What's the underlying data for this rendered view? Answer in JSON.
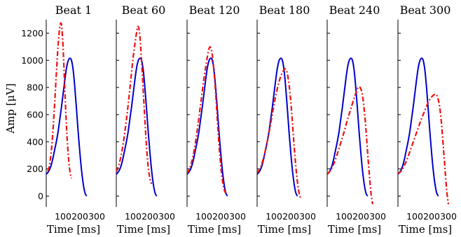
{
  "chart_data": {
    "type": "line",
    "ylabel": "Amp [μV]",
    "yticks": [
      0,
      200,
      400,
      600,
      800,
      1000,
      1200
    ],
    "xticks": [
      100,
      200,
      300
    ],
    "ylim": [
      -80,
      1300
    ],
    "xlim": [
      0,
      350
    ],
    "colors": {
      "solid": "#0000cc",
      "dashed": "#ee1111",
      "axis": "#000000"
    },
    "reference_curve": {
      "x": [
        0,
        10,
        20,
        30,
        40,
        50,
        60,
        70,
        80,
        90,
        100,
        110,
        120,
        130,
        140,
        150,
        160,
        170,
        180,
        190,
        200,
        210,
        220,
        230,
        240
      ],
      "y": [
        160,
        175,
        195,
        230,
        280,
        340,
        400,
        470,
        560,
        650,
        750,
        850,
        940,
        995,
        1015,
        1000,
        930,
        800,
        640,
        470,
        320,
        190,
        90,
        25,
        0
      ]
    },
    "panels": [
      {
        "title": "Beat 1",
        "xlabel": "Time [ms]",
        "dashed": {
          "x": [
            10,
            20,
            30,
            40,
            50,
            60,
            70,
            80,
            90,
            100,
            110,
            120,
            130,
            140,
            150
          ],
          "y": [
            185,
            230,
            330,
            480,
            680,
            900,
            1100,
            1240,
            1265,
            1100,
            800,
            520,
            320,
            190,
            130
          ]
        }
      },
      {
        "title": "Beat 60",
        "xlabel": "Time [ms]",
        "dashed": {
          "x": [
            0,
            20,
            40,
            60,
            80,
            100,
            120,
            130,
            140,
            150,
            160,
            170,
            180,
            190,
            200,
            210
          ],
          "y": [
            180,
            250,
            380,
            560,
            780,
            1020,
            1200,
            1250,
            1180,
            1000,
            780,
            560,
            360,
            210,
            130,
            90
          ]
        }
      },
      {
        "title": "Beat 120",
        "xlabel": "Time [ms]",
        "dashed": {
          "x": [
            0,
            20,
            40,
            60,
            80,
            100,
            120,
            130,
            140,
            150,
            160,
            170,
            180,
            190,
            200,
            210,
            220,
            230
          ],
          "y": [
            165,
            220,
            320,
            480,
            670,
            860,
            1020,
            1085,
            1095,
            1040,
            920,
            760,
            560,
            380,
            230,
            120,
            50,
            20
          ]
        }
      },
      {
        "title": "Beat 180",
        "xlabel": "Time [ms]",
        "dashed": {
          "x": [
            0,
            20,
            40,
            60,
            80,
            100,
            120,
            140,
            160,
            170,
            180,
            190,
            200,
            210,
            220,
            230,
            240,
            250,
            260
          ],
          "y": [
            170,
            210,
            290,
            400,
            530,
            670,
            790,
            880,
            930,
            935,
            900,
            820,
            700,
            540,
            370,
            220,
            100,
            20,
            -20
          ]
        }
      },
      {
        "title": "Beat 240",
        "xlabel": "Time [ms]",
        "dashed": {
          "x": [
            0,
            20,
            40,
            60,
            80,
            100,
            120,
            140,
            160,
            180,
            190,
            200,
            210,
            220,
            230,
            240,
            250,
            260,
            270
          ],
          "y": [
            160,
            190,
            240,
            310,
            390,
            470,
            560,
            640,
            720,
            790,
            805,
            790,
            740,
            640,
            500,
            330,
            170,
            30,
            -60
          ]
        }
      },
      {
        "title": "Beat 300",
        "xlabel": "Time [ms]",
        "dashed": {
          "x": [
            0,
            20,
            40,
            60,
            80,
            100,
            120,
            140,
            160,
            180,
            200,
            220,
            230,
            240,
            250,
            260,
            270,
            280,
            290,
            300
          ],
          "y": [
            165,
            185,
            230,
            290,
            360,
            430,
            500,
            570,
            630,
            690,
            730,
            750,
            745,
            710,
            640,
            520,
            360,
            200,
            40,
            -60
          ]
        }
      }
    ]
  }
}
